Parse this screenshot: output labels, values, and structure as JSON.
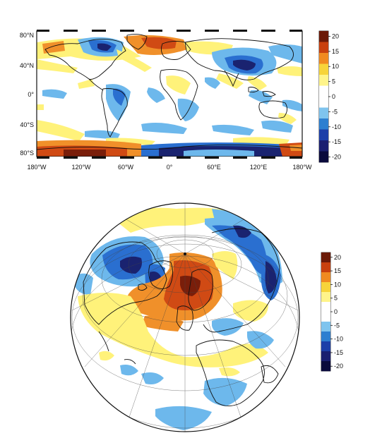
{
  "top_map": {
    "lat_labels": [
      "80°N",
      "40°N",
      "0°",
      "40°S",
      "80°S"
    ],
    "lon_labels": [
      "180°W",
      "120°W",
      "60°W",
      "0°",
      "60°E",
      "120°E",
      "180°W"
    ]
  },
  "colorbar": {
    "ticks": [
      "20",
      "15",
      "10",
      "5",
      "0",
      "-5",
      "-10",
      "-15",
      "-20"
    ],
    "colors": [
      "#6b1a08",
      "#c8400e",
      "#f08a20",
      "#f7d43a",
      "#fff48a",
      "#ffffff",
      "#ffffff",
      "#7fc4ee",
      "#2d7fd0",
      "#1c3fa8",
      "#1a1f70",
      "#0a0a3c"
    ]
  },
  "palette": {
    "dark_red": "#7a1e0a",
    "red": "#d04a14",
    "orange": "#f0902a",
    "yellow": "#fff27a",
    "light_blue": "#6db8ec",
    "blue": "#2a6fd0",
    "navy": "#1a2370",
    "land_outline": "#111111"
  }
}
